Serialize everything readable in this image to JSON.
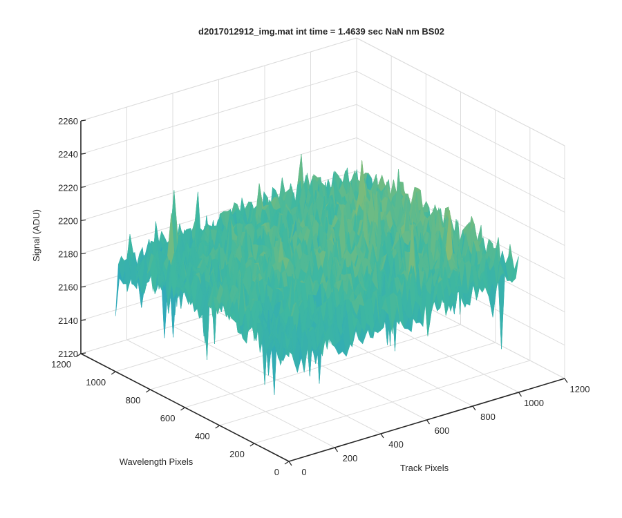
{
  "chart_data": {
    "type": "surface",
    "title": "d2017012912_img.mat int time = 1.4639 sec  NaN nm BS02",
    "xlabel": "Track Pixels",
    "ylabel": "Wavelength Pixels",
    "zlabel": "Signal (ADU)",
    "xlim": [
      0,
      1200
    ],
    "ylim": [
      0,
      1200
    ],
    "zlim": [
      2120,
      2260
    ],
    "x_ticks": [
      "0",
      "200",
      "400",
      "600",
      "800",
      "1000",
      "1200"
    ],
    "y_ticks": [
      "0",
      "200",
      "400",
      "600",
      "800",
      "1000",
      "1200"
    ],
    "z_ticks": [
      "2120",
      "2140",
      "2160",
      "2180",
      "2200",
      "2220",
      "2240",
      "2260"
    ],
    "grid": true,
    "colormap": "parula",
    "colors": {
      "low": "#1f9ad6",
      "mid": "#3fb8a0",
      "high": "#e7c23a"
    },
    "surface": {
      "x_extent": [
        0,
        1000
      ],
      "y_extent": [
        0,
        1000
      ],
      "z_baseline_min": 2170,
      "z_baseline_max": 2205,
      "z_noise_min": 2130,
      "z_noise_max": 2250
    }
  }
}
